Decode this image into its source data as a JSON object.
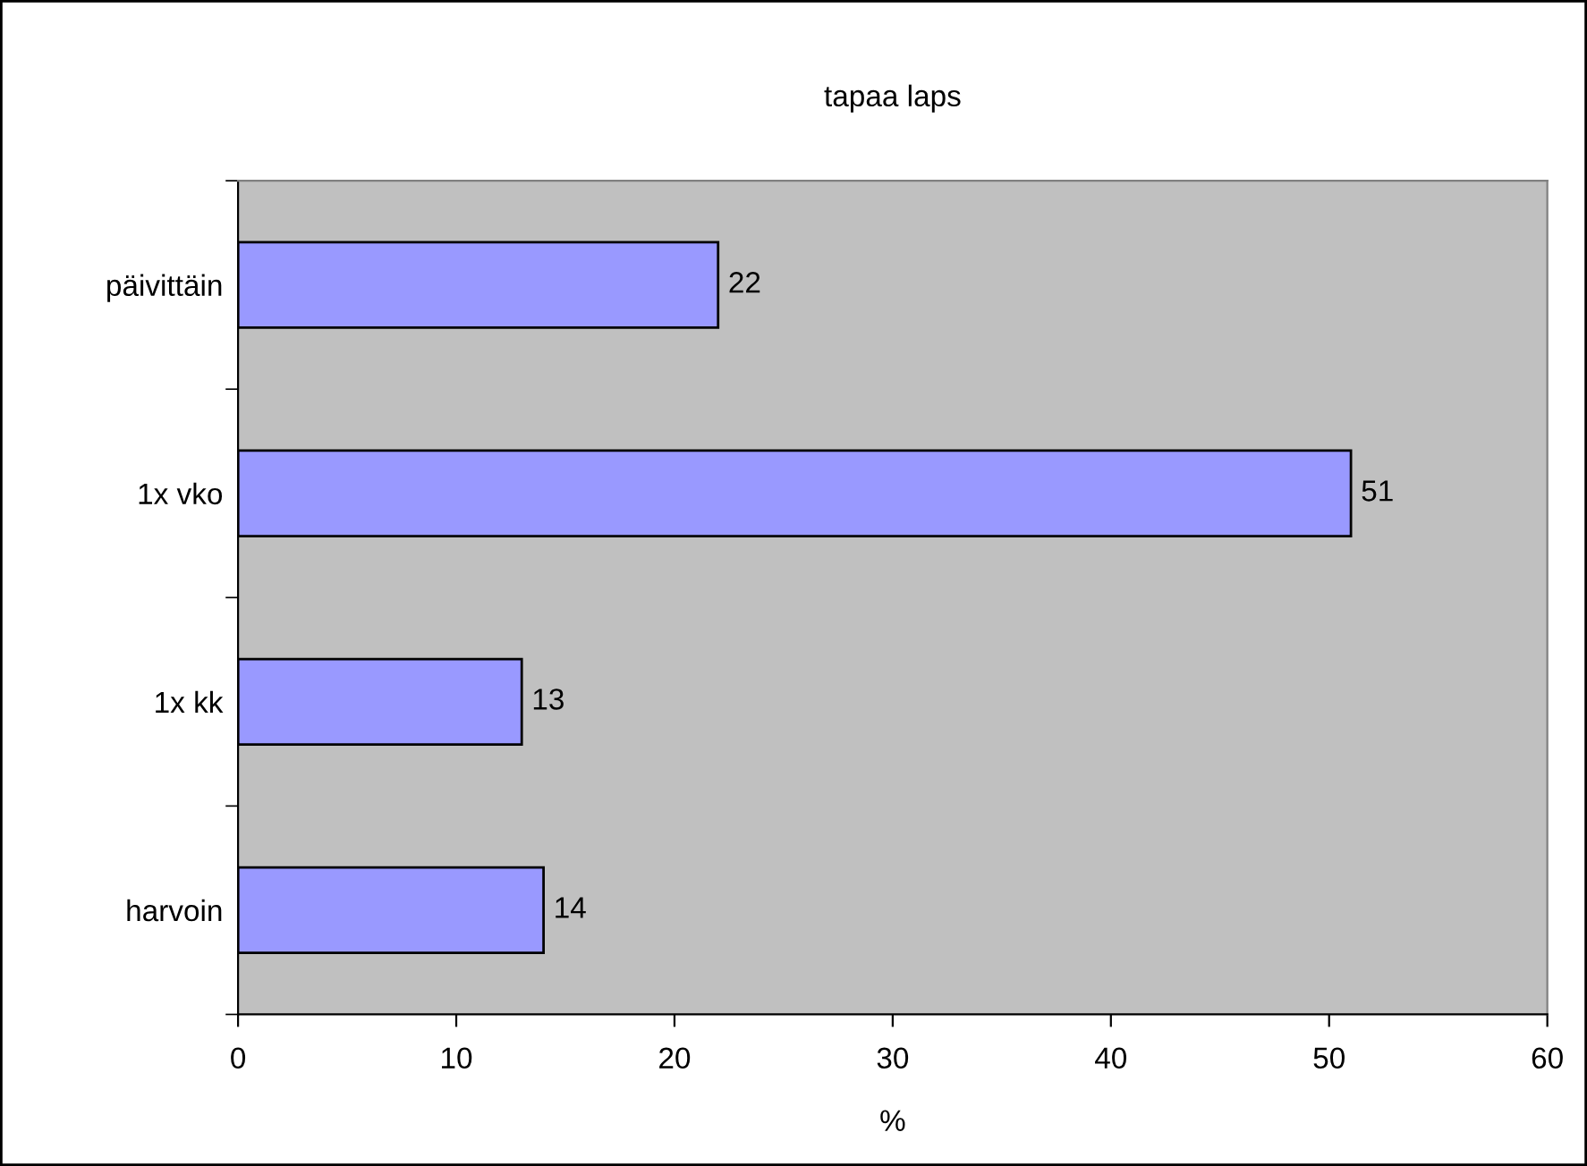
{
  "chart_data": {
    "type": "bar",
    "orientation": "horizontal",
    "title": "tapaa laps",
    "xlabel": "%",
    "categories": [
      "päivittäin",
      "1x vko",
      "1x kk",
      "harvoin"
    ],
    "values": [
      22,
      51,
      13,
      14
    ],
    "color": "#9999ff",
    "xlim": [
      0,
      60
    ],
    "xticks": [
      0,
      10,
      20,
      30,
      40,
      50,
      60
    ],
    "grid": false,
    "data_labels": true
  }
}
